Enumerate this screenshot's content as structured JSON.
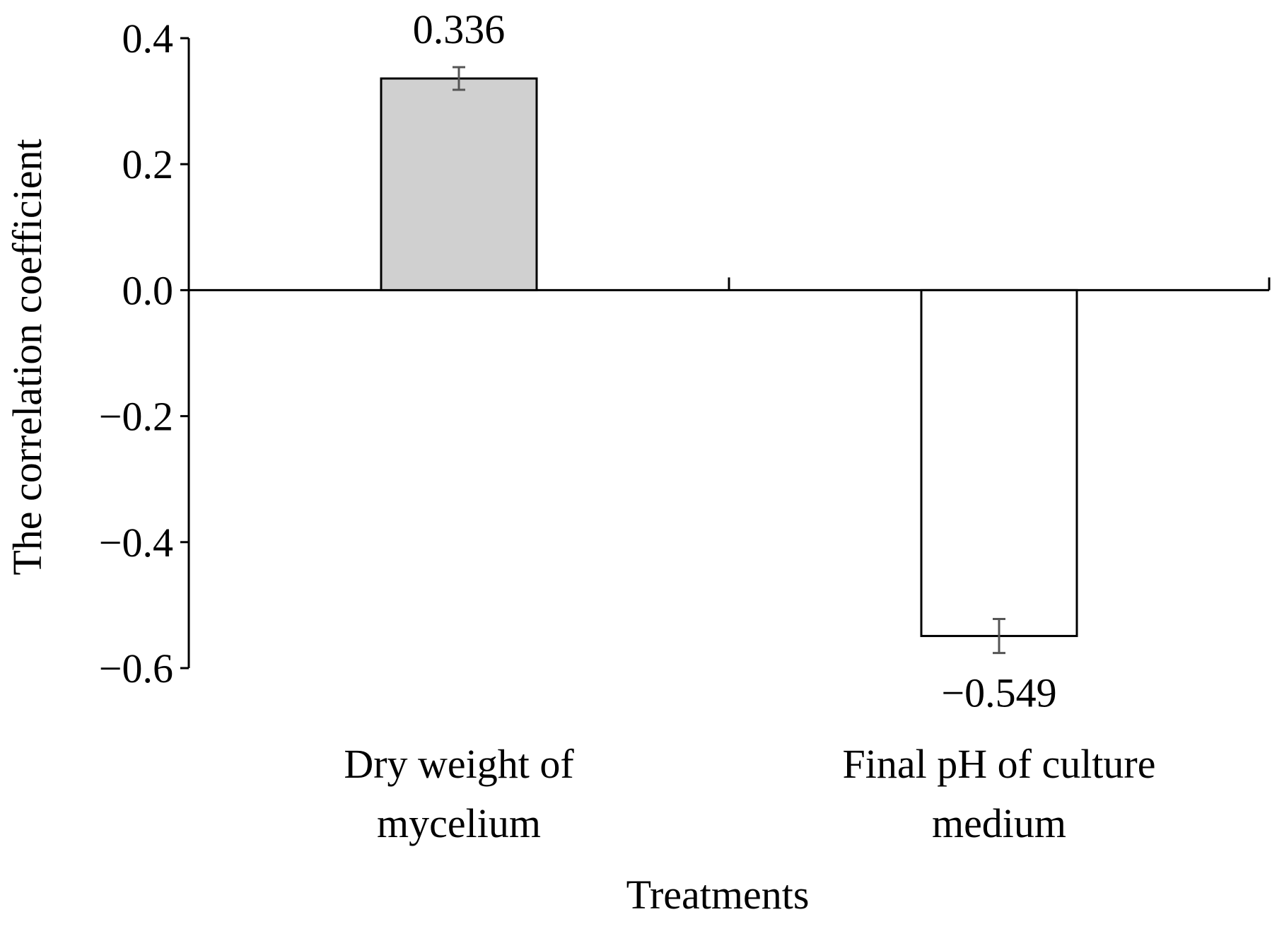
{
  "chart_data": {
    "type": "bar",
    "xlabel": "Treatments",
    "ylabel": "The correlation coefficient",
    "ylim": [
      -0.6,
      0.4
    ],
    "yticks": [
      0.4,
      0.2,
      0.0,
      -0.2,
      -0.4,
      -0.6
    ],
    "ytick_labels": [
      "0.4",
      "0.2",
      "0.0",
      "−0.2",
      "−0.4",
      "−0.6"
    ],
    "grid": false,
    "legend": "none",
    "categories": [
      [
        "Dry weight of",
        "mycelium"
      ],
      [
        "Final pH of culture",
        "medium"
      ]
    ],
    "values": [
      0.336,
      -0.549
    ],
    "value_labels": [
      "0.336",
      "−0.549"
    ],
    "error_bars": [
      0.018,
      0.027
    ],
    "bar_colors": [
      "#d0d0d0",
      "#ffffff"
    ],
    "bar_edge_color": "#000000",
    "error_bar_color": "#555555"
  }
}
